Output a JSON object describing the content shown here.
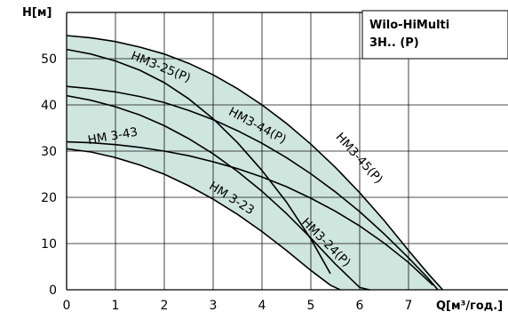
{
  "chart_data": {
    "type": "line",
    "title": "",
    "legend_box": {
      "line1": "Wilo-HiMulti",
      "line2": "3H.. (P)"
    },
    "xlabel": "Q[м³/год.]",
    "ylabel": "H[м]",
    "xlim": [
      0,
      8
    ],
    "ylim": [
      0,
      55
    ],
    "xticks": [
      "0",
      "1",
      "2",
      "3",
      "4",
      "5",
      "6",
      "7"
    ],
    "yticks": [
      "0",
      "10",
      "20",
      "30",
      "40",
      "50"
    ],
    "grid": true,
    "band_color": "#cfe6df",
    "series": [
      {
        "name": "HM3-45(P)",
        "x": [
          0,
          0.5,
          1,
          1.5,
          2,
          2.5,
          3,
          3.5,
          4,
          4.5,
          5,
          5.5,
          6,
          6.5,
          7,
          7.4,
          7.7
        ],
        "y": [
          55,
          54.5,
          53.7,
          52.5,
          51,
          49,
          46.5,
          43.5,
          40,
          36,
          31.5,
          26.5,
          21,
          15,
          8.5,
          3.5,
          0
        ]
      },
      {
        "name": "HM3-44(P)",
        "x": [
          0,
          0.5,
          1,
          1.5,
          2,
          2.5,
          3,
          3.5,
          4,
          4.5,
          5,
          5.5,
          6,
          6.5,
          7,
          7.4,
          7.6
        ],
        "y": [
          44,
          43.5,
          42.8,
          41.8,
          40.5,
          38.8,
          36.8,
          34.4,
          31.7,
          28.6,
          25.1,
          21.2,
          16.9,
          12.1,
          6.9,
          2.5,
          0
        ]
      },
      {
        "name": "HM3-25(P)",
        "x": [
          0,
          0.5,
          1,
          1.5,
          2,
          2.5,
          3,
          3.5,
          4,
          4.5,
          5,
          5.4
        ],
        "y": [
          52,
          51,
          49.5,
          47.5,
          44.8,
          41.3,
          37,
          31.8,
          25.8,
          19,
          11,
          3.5
        ]
      },
      {
        "name": "HM 3-43",
        "x": [
          0,
          0.5,
          1,
          1.5,
          2,
          2.5,
          3,
          3.5,
          4,
          4.5,
          5,
          5.5,
          6,
          6.5,
          7,
          7.5
        ],
        "y": [
          32,
          31.8,
          31.4,
          30.8,
          30,
          29,
          27.7,
          26.2,
          24.4,
          22.3,
          19.8,
          17,
          13.8,
          10.1,
          5.9,
          1
        ]
      },
      {
        "name": "HM3-24(P)",
        "x": [
          0,
          0.5,
          1,
          1.5,
          2,
          2.5,
          3,
          3.5,
          4,
          4.5,
          5,
          5.5,
          6,
          6.2
        ],
        "y": [
          42,
          41,
          39.6,
          37.8,
          35.5,
          32.7,
          29.4,
          25.6,
          21.3,
          16.5,
          11.2,
          5.6,
          0.5,
          0
        ]
      },
      {
        "name": "HM 3-23",
        "x": [
          0,
          0.5,
          1,
          1.5,
          2,
          2.5,
          3,
          3.5,
          4,
          4.5,
          5,
          5.4,
          5.6
        ],
        "y": [
          30.5,
          29.8,
          28.6,
          27,
          25,
          22.5,
          19.6,
          16.3,
          12.6,
          8.5,
          4.2,
          1,
          0
        ]
      }
    ],
    "labels": [
      {
        "text": "HM3-25(P)",
        "x": 1.3,
        "y": 50.0,
        "angle": 22
      },
      {
        "text": "HM3-44(P)",
        "x": 3.3,
        "y": 38.0,
        "angle": 28
      },
      {
        "text": "HM3-45(P)",
        "x": 5.5,
        "y": 33.0,
        "angle": 48
      },
      {
        "text": "HM 3-43",
        "x": 0.45,
        "y": 31.5,
        "angle": -10
      },
      {
        "text": "HM 3-23",
        "x": 2.9,
        "y": 22.0,
        "angle": 32
      },
      {
        "text": "HM3-24(P)",
        "x": 4.8,
        "y": 14.5,
        "angle": 45
      }
    ]
  }
}
